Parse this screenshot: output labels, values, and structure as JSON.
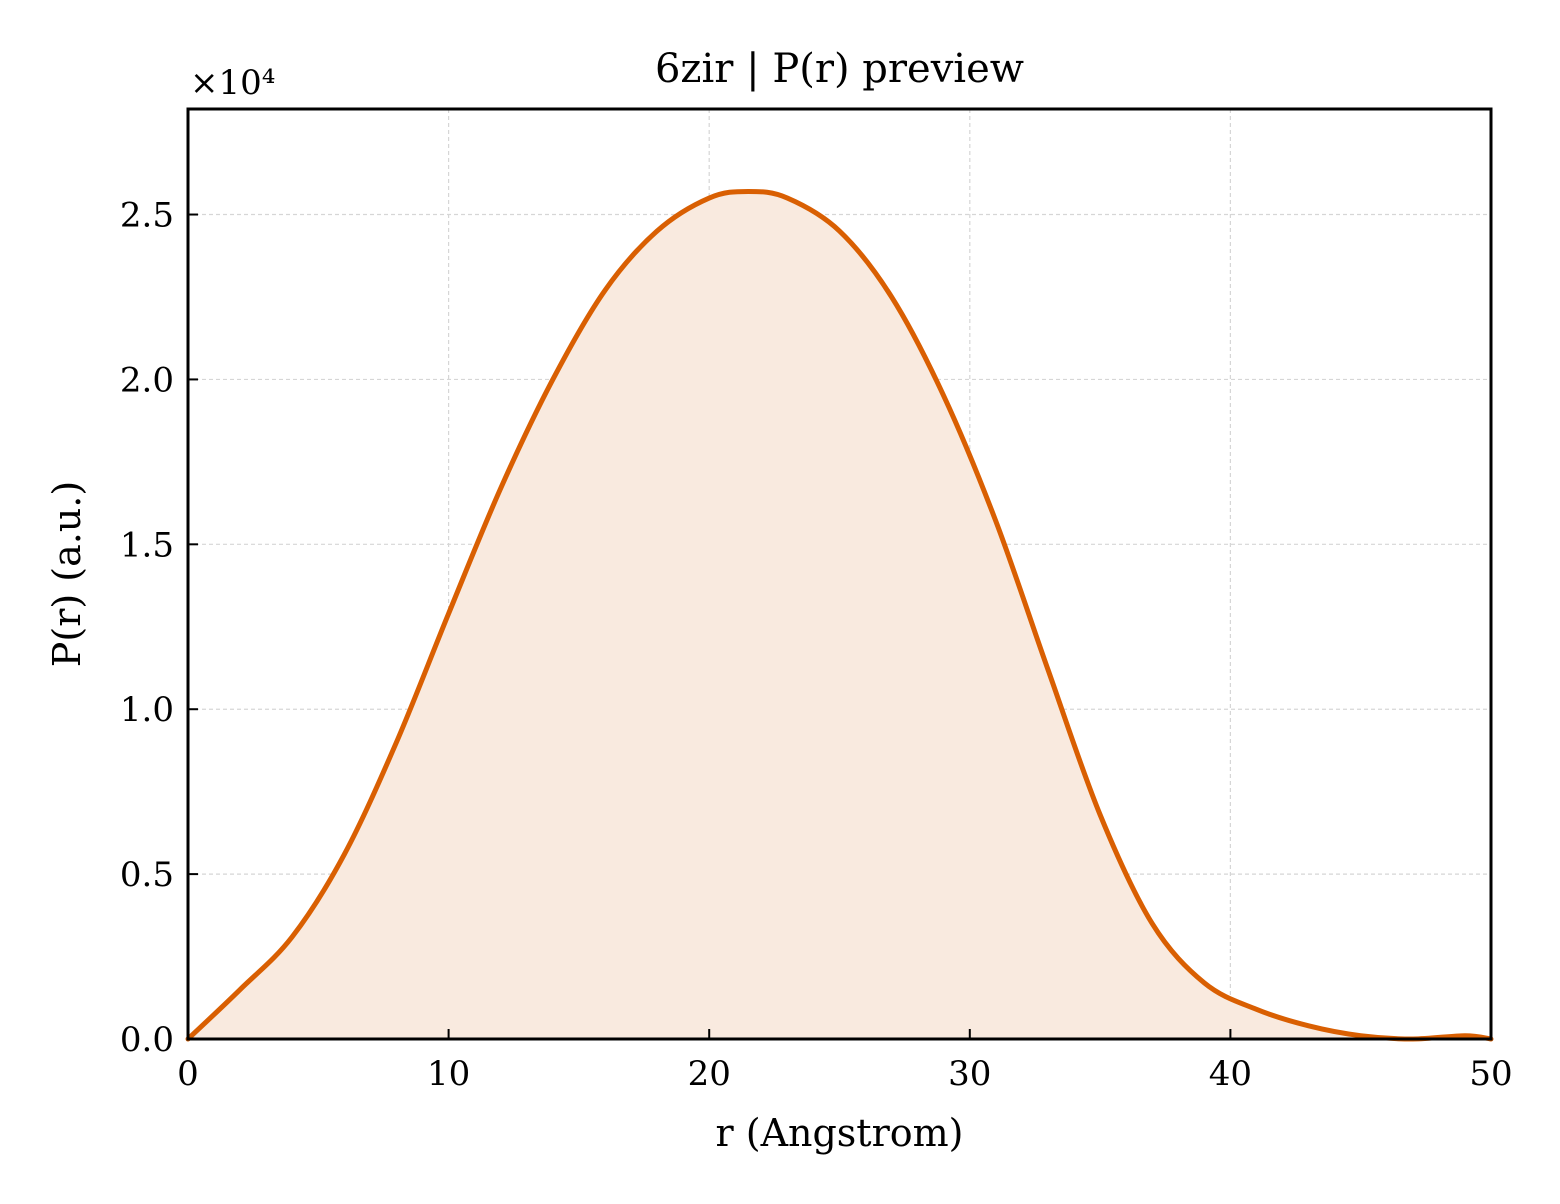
{
  "chart_data": {
    "type": "area",
    "title": "6zir | P(r) preview",
    "xlabel": "r (Angstrom)",
    "ylabel": "P(r) (a.u.)",
    "y_offset_label": "×10⁴",
    "y_scale": 10000,
    "xlim": [
      0,
      50
    ],
    "ylim": [
      0,
      28200
    ],
    "xticks": [
      0,
      10,
      20,
      30,
      40,
      50
    ],
    "xtick_labels": [
      "0",
      "10",
      "20",
      "30",
      "40",
      "50"
    ],
    "yticks": [
      0,
      5000,
      10000,
      15000,
      20000,
      25000
    ],
    "ytick_labels": [
      "0.0",
      "0.5",
      "1.0",
      "1.5",
      "2.0",
      "2.5"
    ],
    "grid": true,
    "colors": {
      "line": "#d95f02",
      "fill": "#f9eadf"
    },
    "series": [
      {
        "x": [
          0,
          2,
          4,
          6,
          8,
          10,
          12,
          14,
          16,
          18,
          20,
          21.5,
          23,
          25,
          27,
          29,
          31,
          33,
          35,
          37,
          39,
          41,
          43,
          45,
          47,
          49,
          50
        ],
        "y": [
          0,
          1500,
          3100,
          5600,
          9000,
          12900,
          16700,
          20000,
          22700,
          24500,
          25500,
          25700,
          25500,
          24500,
          22500,
          19500,
          15700,
          11200,
          6800,
          3500,
          1700,
          900,
          400,
          100,
          0,
          100,
          0
        ]
      }
    ]
  }
}
